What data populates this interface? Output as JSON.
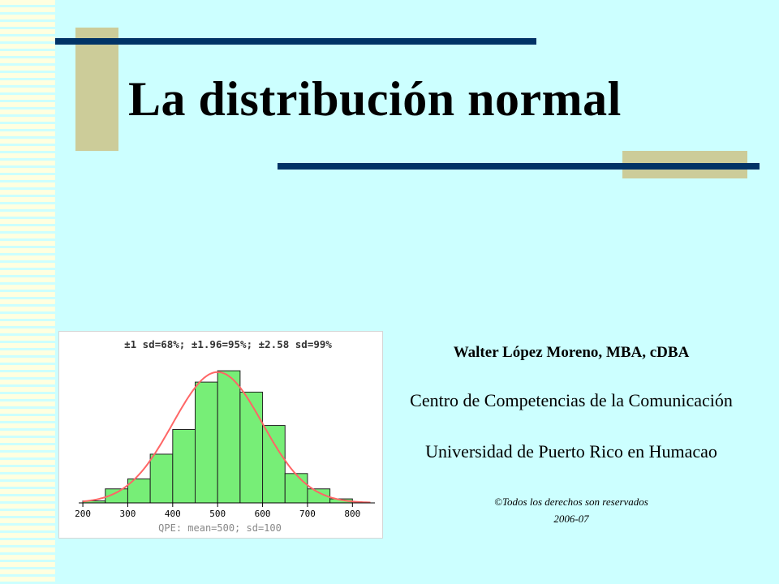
{
  "slide": {
    "title": "La distribución normal",
    "author": "Walter López Moreno, MBA, cDBA",
    "center": "Centro de Competencias de la Comunicación",
    "university": "Universidad de Puerto Rico en Humacao",
    "copyright": "©Todos los derechos son reservados",
    "year": "2006-07"
  },
  "colors": {
    "background": "#ccffff",
    "accent_bar": "#003366",
    "accent_block": "#cccc99",
    "bar_fill": "#77ee77",
    "curve": "#ff6666"
  },
  "chart_data": {
    "type": "bar",
    "title": "±1 sd=68%; ±1.96=95%; ±2.58 sd=99%",
    "footer": "QPE: mean=500; sd=100",
    "x_ticks": [
      200,
      300,
      400,
      500,
      600,
      700,
      800
    ],
    "bin_width": 50,
    "bins": [
      {
        "start": 200,
        "value": 0.3
      },
      {
        "start": 250,
        "value": 2.1
      },
      {
        "start": 300,
        "value": 3.6
      },
      {
        "start": 350,
        "value": 7.3
      },
      {
        "start": 400,
        "value": 11.0
      },
      {
        "start": 450,
        "value": 18.1
      },
      {
        "start": 500,
        "value": 19.8
      },
      {
        "start": 550,
        "value": 16.6
      },
      {
        "start": 600,
        "value": 11.6
      },
      {
        "start": 650,
        "value": 4.4
      },
      {
        "start": 700,
        "value": 2.1
      },
      {
        "start": 750,
        "value": 0.6
      }
    ],
    "curve": {
      "mean": 500,
      "sd": 100,
      "peak": 19.6
    },
    "xlim": [
      180,
      850
    ],
    "ylim": [
      0,
      22
    ]
  }
}
